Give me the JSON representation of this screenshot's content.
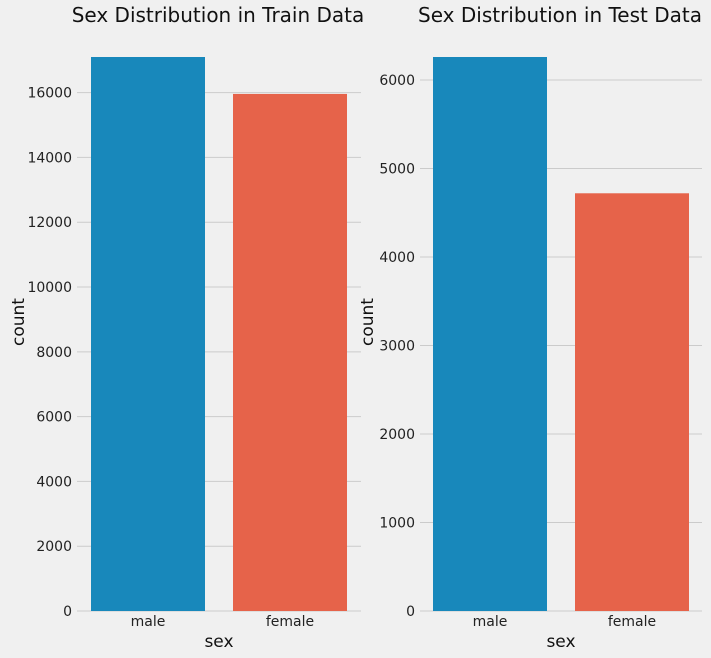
{
  "colors": {
    "background": "#f0f0f0",
    "grid": "#cbcbcb",
    "male": "#1888bb",
    "female": "#e6634a"
  },
  "chart_data": [
    {
      "type": "bar",
      "title": "Sex Distribution in Train Data",
      "xlabel": "sex",
      "ylabel": "count",
      "categories": [
        "male",
        "female"
      ],
      "values": [
        17100,
        15960
      ],
      "ylim": [
        0,
        17100
      ],
      "yticks": [
        0,
        2000,
        4000,
        6000,
        8000,
        10000,
        12000,
        14000,
        16000
      ],
      "grid": "horizontal",
      "bar_colors": [
        "#1888bb",
        "#e6634a"
      ]
    },
    {
      "type": "bar",
      "title": "Sex Distribution in Test Data",
      "xlabel": "sex",
      "ylabel": "count",
      "categories": [
        "male",
        "female"
      ],
      "values": [
        6260,
        4720
      ],
      "ylim": [
        0,
        6260
      ],
      "yticks": [
        0,
        1000,
        2000,
        3000,
        4000,
        5000,
        6000
      ],
      "grid": "horizontal",
      "bar_colors": [
        "#1888bb",
        "#e6634a"
      ]
    }
  ]
}
